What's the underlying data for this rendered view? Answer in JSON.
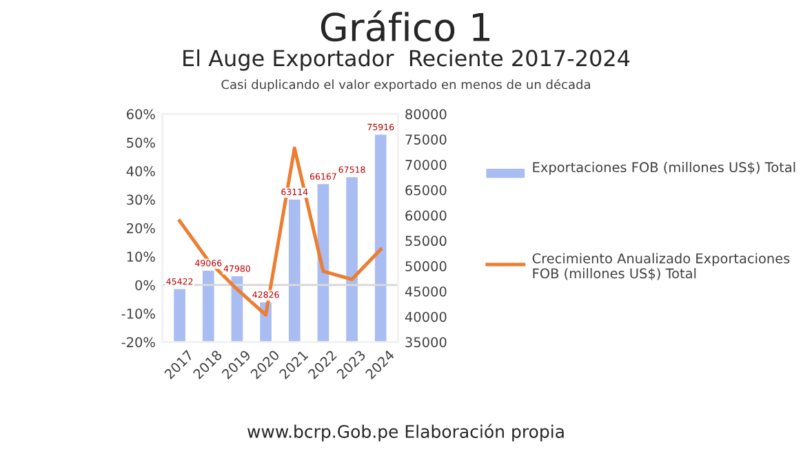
{
  "chart_data": {
    "type": "bar",
    "title": "El Auge Exportador  Reciente 2017-2024",
    "subtitle": "Casi duplicando el valor exportado en menos de un década",
    "annotations": [
      "Gráfico 1",
      "www.bcrp.Gob.pe Elaboración propia"
    ],
    "categories": [
      "2017",
      "2018",
      "2019",
      "2020",
      "2021",
      "2022",
      "2023",
      "2024"
    ],
    "series": [
      {
        "name": "Exportaciones FOB (millones US$) Total",
        "axis": "y2",
        "color": "#a9bdf2",
        "values": [
          45422,
          49066,
          47980,
          42826,
          63114,
          66167,
          67518,
          75916
        ],
        "value_labels": [
          "45422",
          "49066",
          "47980",
          "42826",
          "63114",
          "66167",
          "67518",
          "75916"
        ]
      },
      {
        "name": "Crecimiento Anualizado Exportaciones FOB (millones US$) Total",
        "type": "line",
        "color": "#ed7d31",
        "values": [
          22.5,
          8.5,
          -1.5,
          -10.5,
          48,
          4.8,
          2,
          12.5
        ]
      }
    ],
    "ylim": [
      -20,
      60
    ],
    "yticks": [
      {
        "value": -20,
        "label": "-20%"
      },
      {
        "value": -10,
        "label": "-10%"
      },
      {
        "value": 0,
        "label": "0%"
      },
      {
        "value": 10,
        "label": "10%"
      },
      {
        "value": 20,
        "label": "20%"
      },
      {
        "value": 30,
        "label": "30%"
      },
      {
        "value": 40,
        "label": "40%"
      },
      {
        "value": 50,
        "label": "50%"
      },
      {
        "value": 60,
        "label": "60%"
      }
    ],
    "y2lim": [
      35000,
      80000
    ],
    "y2ticks": [
      35000,
      40000,
      45000,
      50000,
      55000,
      60000,
      65000,
      70000,
      75000,
      80000
    ],
    "ref_lines": [
      {
        "axis": "y",
        "value": 0,
        "color": "#d9d9d9"
      }
    ],
    "legend": "right",
    "grid": false
  }
}
